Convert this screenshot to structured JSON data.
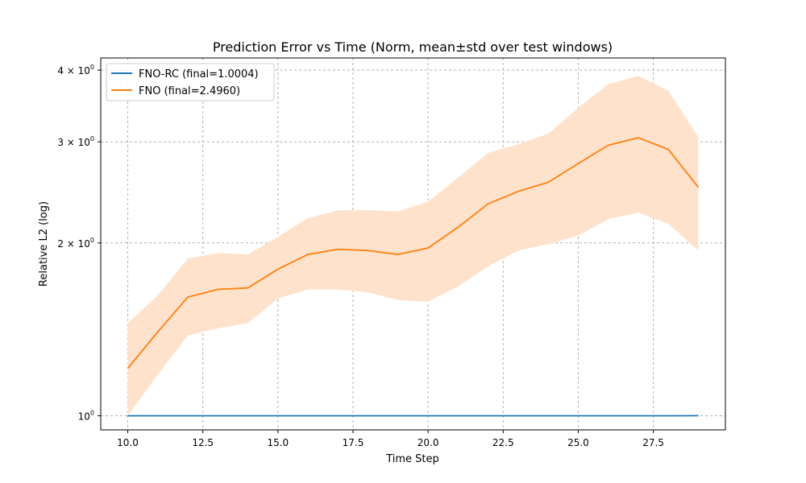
{
  "chart_data": {
    "type": "line",
    "title": "Prediction Error vs Time (Norm, mean±std over test windows)",
    "xlabel": "Time Step",
    "ylabel": "Relative L2 (log)",
    "y_scale": "log",
    "xlim": [
      9.1,
      29.9
    ],
    "ylim": [
      0.945,
      4.2
    ],
    "grid": true,
    "legend_position": "top-left",
    "x_ticks": [
      10.0,
      12.5,
      15.0,
      17.5,
      20.0,
      22.5,
      25.0,
      27.5
    ],
    "x_tick_labels": [
      "10.0",
      "12.5",
      "15.0",
      "17.5",
      "20.0",
      "22.5",
      "25.0",
      "27.5"
    ],
    "y_ticks": [
      {
        "value": 1,
        "base": "10",
        "exp": "0"
      },
      {
        "value": 2,
        "base": "2 × 10",
        "exp": "0"
      },
      {
        "value": 3,
        "base": "3 × 10",
        "exp": "0"
      },
      {
        "value": 4,
        "base": "4 × 10",
        "exp": "0"
      }
    ],
    "x": [
      10,
      11,
      12,
      13,
      14,
      15,
      16,
      17,
      18,
      19,
      20,
      21,
      22,
      23,
      24,
      25,
      26,
      27,
      28,
      29
    ],
    "series": [
      {
        "name": "FNO-RC (final=1.0004)",
        "color": "#1f77b4",
        "values": [
          1.0,
          1.0,
          1.0,
          1.0,
          1.0,
          1.0,
          1.0,
          1.0,
          1.0,
          1.0,
          1.0,
          1.0,
          1.0,
          1.0,
          1.0,
          1.0,
          1.0,
          1.0,
          1.0,
          1.0004
        ]
      },
      {
        "name": "FNO (final=2.4960)",
        "color": "#ff7f0e",
        "band_color": "#ffe2cc",
        "values": [
          1.21,
          1.4,
          1.61,
          1.66,
          1.67,
          1.8,
          1.91,
          1.95,
          1.94,
          1.91,
          1.96,
          2.13,
          2.34,
          2.46,
          2.55,
          2.75,
          2.96,
          3.05,
          2.91,
          2.5
        ],
        "upper": [
          1.45,
          1.62,
          1.88,
          1.92,
          1.91,
          2.05,
          2.21,
          2.28,
          2.28,
          2.27,
          2.36,
          2.6,
          2.87,
          2.97,
          3.1,
          3.44,
          3.78,
          3.91,
          3.68,
          3.06
        ],
        "lower": [
          1.0,
          1.18,
          1.38,
          1.42,
          1.45,
          1.6,
          1.66,
          1.66,
          1.64,
          1.59,
          1.58,
          1.68,
          1.82,
          1.94,
          1.99,
          2.06,
          2.2,
          2.26,
          2.16,
          1.94
        ]
      }
    ]
  }
}
